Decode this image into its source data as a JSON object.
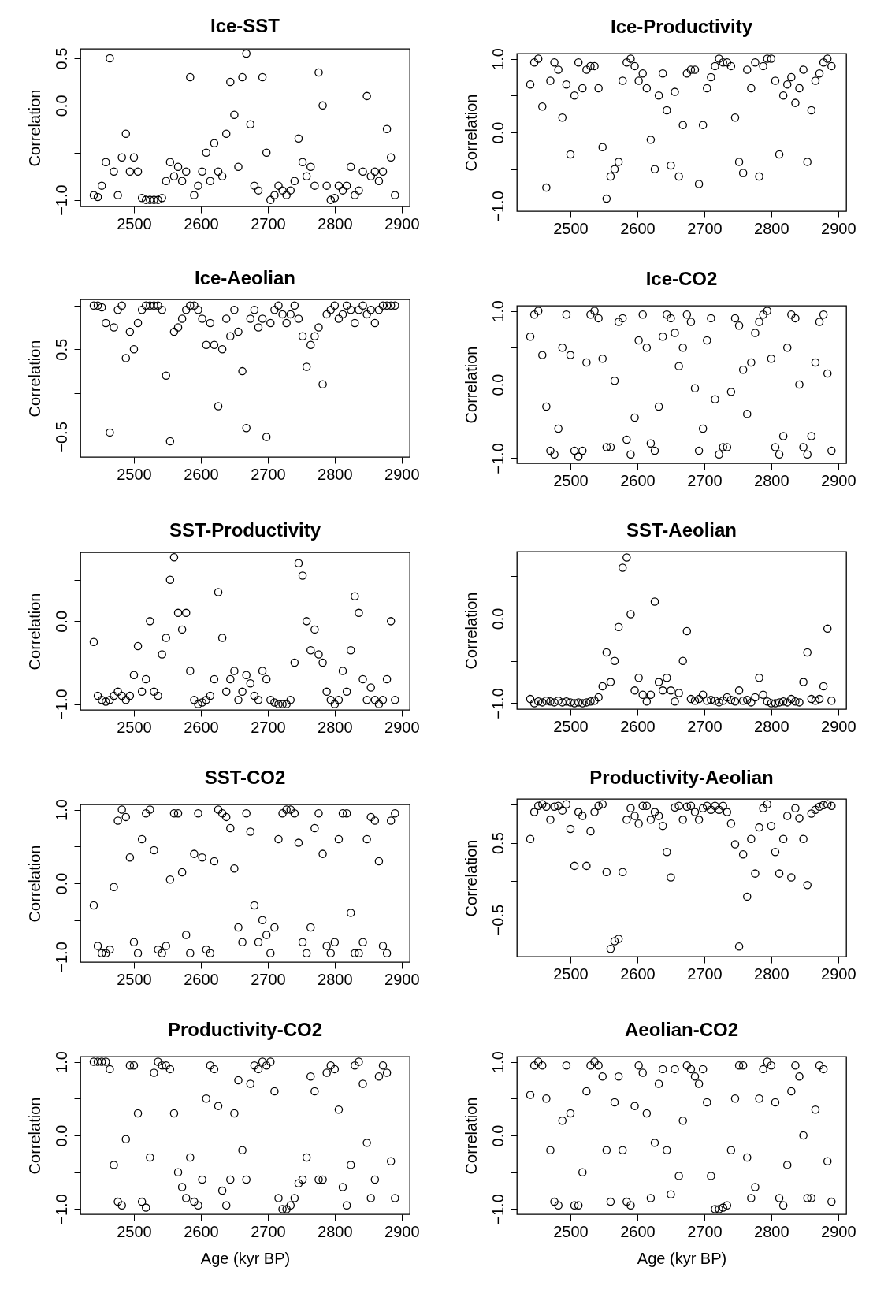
{
  "chart_data": [
    {
      "type": "scatter",
      "title": "Ice-SST",
      "ylabel": "Correlation",
      "marker": "circle",
      "xlim": [
        2420,
        2912
      ],
      "xticks": [
        2500,
        2600,
        2700,
        2800,
        2900
      ],
      "ylim": [
        -1.07,
        0.6
      ],
      "yticks": [
        {
          "value": -1,
          "label": "−1.0"
        },
        {
          "value": -0.5,
          "label": null
        },
        {
          "value": 0,
          "label": "0.0"
        },
        {
          "value": 0.5,
          "label": "0.5"
        }
      ],
      "x": [
        2440,
        2446,
        2452,
        2458,
        2464,
        2470,
        2476,
        2482,
        2488,
        2494,
        2500,
        2506,
        2512,
        2518,
        2524,
        2530,
        2536,
        2542,
        2548,
        2554,
        2560,
        2566,
        2572,
        2578,
        2584,
        2590,
        2596,
        2602,
        2608,
        2614,
        2620,
        2626,
        2632,
        2638,
        2644,
        2650,
        2656,
        2662,
        2668,
        2674,
        2680,
        2686,
        2692,
        2698,
        2704,
        2710,
        2716,
        2722,
        2728,
        2734,
        2740,
        2746,
        2752,
        2758,
        2764,
        2770,
        2776,
        2782,
        2788,
        2794,
        2800,
        2806,
        2812,
        2818,
        2824,
        2830,
        2836,
        2842,
        2848,
        2854,
        2860,
        2866,
        2872,
        2878,
        2884,
        2890
      ],
      "series": [
        {
          "color": "#000000",
          "values": [
            -0.95,
            -0.97,
            -0.85,
            -0.6,
            0.5,
            -0.7,
            -0.95,
            -0.55,
            -0.3,
            -0.7,
            -0.55,
            -0.7,
            -0.98,
            -1.0,
            -1.0,
            -1.0,
            -1.0,
            -0.98,
            -0.8,
            -0.6,
            -0.75,
            -0.65,
            -0.8,
            -0.7,
            0.3,
            -0.95,
            -0.85,
            -0.7,
            -0.5,
            -0.8,
            -0.4,
            -0.7,
            -0.75,
            -0.3,
            0.25,
            -0.1,
            -0.65,
            0.3,
            0.55,
            -0.2,
            -0.85,
            -0.9,
            0.3,
            -0.5,
            -1.0,
            -0.95,
            -0.85,
            -0.9,
            -0.95,
            -0.9,
            -0.8,
            -0.35,
            -0.6,
            -0.75,
            -0.65,
            -0.85,
            0.35,
            0.0,
            -0.85,
            -1.0,
            -0.98,
            -0.85,
            -0.9,
            -0.85,
            -0.65,
            -0.95,
            -0.9,
            -0.7,
            0.1,
            -0.75,
            -0.7,
            -0.8,
            -0.7,
            -0.25,
            -0.55,
            -0.95
          ]
        }
      ]
    },
    {
      "type": "scatter",
      "title": "Ice-Productivity",
      "ylabel": "Correlation",
      "marker": "circle",
      "xlim": [
        2420,
        2912
      ],
      "xticks": [
        2500,
        2600,
        2700,
        2800,
        2900
      ],
      "ylim": [
        -1.07,
        1.07
      ],
      "yticks": [
        {
          "value": -1,
          "label": "−1.0"
        },
        {
          "value": -0.5,
          "label": null
        },
        {
          "value": 0,
          "label": "0.0"
        },
        {
          "value": 0.5,
          "label": null
        },
        {
          "value": 1,
          "label": "1.0"
        }
      ],
      "x": [
        2440,
        2446,
        2452,
        2458,
        2464,
        2470,
        2476,
        2482,
        2488,
        2494,
        2500,
        2506,
        2512,
        2518,
        2524,
        2530,
        2536,
        2542,
        2548,
        2554,
        2560,
        2566,
        2572,
        2578,
        2584,
        2590,
        2596,
        2602,
        2608,
        2614,
        2620,
        2626,
        2632,
        2638,
        2644,
        2650,
        2656,
        2662,
        2668,
        2674,
        2680,
        2686,
        2692,
        2698,
        2704,
        2710,
        2716,
        2722,
        2728,
        2734,
        2740,
        2746,
        2752,
        2758,
        2764,
        2770,
        2776,
        2782,
        2788,
        2794,
        2800,
        2806,
        2812,
        2818,
        2824,
        2830,
        2836,
        2842,
        2848,
        2854,
        2860,
        2866,
        2872,
        2878,
        2884,
        2890
      ],
      "series": [
        {
          "color": "#000000",
          "values": [
            0.65,
            0.95,
            1.0,
            0.35,
            -0.75,
            0.7,
            0.95,
            0.85,
            0.2,
            0.65,
            -0.3,
            0.5,
            0.95,
            0.6,
            0.85,
            0.9,
            0.9,
            0.6,
            -0.2,
            -0.9,
            -0.6,
            -0.5,
            -0.4,
            0.7,
            0.95,
            1.0,
            0.9,
            0.7,
            0.8,
            0.6,
            -0.1,
            -0.5,
            0.5,
            0.8,
            0.3,
            -0.45,
            0.55,
            -0.6,
            0.1,
            0.8,
            0.85,
            0.85,
            -0.7,
            0.1,
            0.6,
            0.75,
            0.9,
            1.0,
            0.95,
            0.95,
            0.9,
            0.2,
            -0.4,
            -0.55,
            0.85,
            0.6,
            0.95,
            -0.6,
            0.9,
            1.0,
            1.0,
            0.7,
            -0.3,
            0.5,
            0.65,
            0.75,
            0.4,
            0.6,
            0.85,
            -0.4,
            0.3,
            0.7,
            0.8,
            0.95,
            1.0,
            0.9
          ]
        }
      ]
    },
    {
      "type": "scatter",
      "title": "Ice-Aeolian",
      "ylabel": "Correlation",
      "marker": "circle",
      "xlim": [
        2420,
        2912
      ],
      "xticks": [
        2500,
        2600,
        2700,
        2800,
        2900
      ],
      "ylim": [
        -0.73,
        1.07
      ],
      "yticks": [
        {
          "value": -0.5,
          "label": "−0.5"
        },
        {
          "value": 0,
          "label": null
        },
        {
          "value": 0.5,
          "label": "0.5"
        },
        {
          "value": 1,
          "label": null
        }
      ],
      "x": [
        2440,
        2446,
        2452,
        2458,
        2464,
        2470,
        2476,
        2482,
        2488,
        2494,
        2500,
        2506,
        2512,
        2518,
        2524,
        2530,
        2536,
        2542,
        2548,
        2554,
        2560,
        2566,
        2572,
        2578,
        2584,
        2590,
        2596,
        2602,
        2608,
        2614,
        2620,
        2626,
        2632,
        2638,
        2644,
        2650,
        2656,
        2662,
        2668,
        2674,
        2680,
        2686,
        2692,
        2698,
        2704,
        2710,
        2716,
        2722,
        2728,
        2734,
        2740,
        2746,
        2752,
        2758,
        2764,
        2770,
        2776,
        2782,
        2788,
        2794,
        2800,
        2806,
        2812,
        2818,
        2824,
        2830,
        2836,
        2842,
        2848,
        2854,
        2860,
        2866,
        2872,
        2878,
        2884,
        2890
      ],
      "series": [
        {
          "color": "#000000",
          "values": [
            1.0,
            1.0,
            0.98,
            0.8,
            -0.45,
            0.75,
            0.95,
            1.0,
            0.4,
            0.7,
            0.5,
            0.8,
            0.95,
            1.0,
            1.0,
            1.0,
            1.0,
            0.95,
            0.2,
            -0.55,
            0.7,
            0.75,
            0.85,
            0.95,
            1.0,
            1.0,
            0.95,
            0.85,
            0.55,
            0.8,
            0.55,
            -0.15,
            0.5,
            0.85,
            0.65,
            0.95,
            0.7,
            0.25,
            -0.4,
            0.85,
            0.95,
            0.75,
            0.85,
            -0.5,
            0.8,
            0.95,
            1.0,
            0.9,
            0.8,
            0.9,
            1.0,
            0.85,
            0.65,
            0.3,
            0.55,
            0.65,
            0.75,
            0.1,
            0.9,
            0.95,
            1.0,
            0.85,
            0.9,
            1.0,
            0.95,
            0.8,
            0.95,
            1.0,
            0.9,
            0.95,
            0.8,
            0.95,
            1.0,
            1.0,
            1.0,
            1.0
          ]
        }
      ]
    },
    {
      "type": "scatter",
      "title": "Ice-CO2",
      "ylabel": "Correlation",
      "marker": "circle",
      "xlim": [
        2420,
        2912
      ],
      "xticks": [
        2500,
        2600,
        2700,
        2800,
        2900
      ],
      "ylim": [
        -1.07,
        1.07
      ],
      "yticks": [
        {
          "value": -1,
          "label": "−1.0"
        },
        {
          "value": -0.5,
          "label": null
        },
        {
          "value": 0,
          "label": "0.0"
        },
        {
          "value": 0.5,
          "label": null
        },
        {
          "value": 1,
          "label": "1.0"
        }
      ],
      "x": [
        2440,
        2446,
        2452,
        2458,
        2464,
        2470,
        2476,
        2482,
        2488,
        2494,
        2500,
        2506,
        2512,
        2518,
        2524,
        2530,
        2536,
        2542,
        2548,
        2554,
        2560,
        2566,
        2572,
        2578,
        2584,
        2590,
        2596,
        2602,
        2608,
        2614,
        2620,
        2626,
        2632,
        2638,
        2644,
        2650,
        2656,
        2662,
        2668,
        2674,
        2680,
        2686,
        2692,
        2698,
        2704,
        2710,
        2716,
        2722,
        2728,
        2734,
        2740,
        2746,
        2752,
        2758,
        2764,
        2770,
        2776,
        2782,
        2788,
        2794,
        2800,
        2806,
        2812,
        2818,
        2824,
        2830,
        2836,
        2842,
        2848,
        2854,
        2860,
        2866,
        2872,
        2878,
        2884,
        2890
      ],
      "series": [
        {
          "color": "#000000",
          "values": [
            0.65,
            0.95,
            1.0,
            0.4,
            -0.3,
            -0.9,
            -0.95,
            -0.6,
            0.5,
            0.95,
            0.4,
            -0.9,
            -0.98,
            -0.9,
            0.3,
            0.95,
            1.0,
            0.9,
            0.35,
            -0.85,
            -0.85,
            0.05,
            0.85,
            0.9,
            -0.75,
            -0.95,
            -0.45,
            0.6,
            0.95,
            0.5,
            -0.8,
            -0.9,
            -0.3,
            0.65,
            0.95,
            0.9,
            0.7,
            0.25,
            0.5,
            0.95,
            0.85,
            -0.05,
            -0.9,
            -0.6,
            0.6,
            0.9,
            -0.2,
            -0.95,
            -0.85,
            -0.85,
            -0.1,
            0.9,
            0.8,
            0.2,
            -0.4,
            0.3,
            0.7,
            0.85,
            0.95,
            1.0,
            0.35,
            -0.85,
            -0.95,
            -0.7,
            0.5,
            0.95,
            0.9,
            0.0,
            -0.85,
            -0.95,
            -0.7,
            0.3,
            0.85,
            0.95,
            0.15,
            -0.9
          ]
        }
      ]
    },
    {
      "type": "scatter",
      "title": "SST-Productivity",
      "ylabel": "Correlation",
      "marker": "circle",
      "xlim": [
        2420,
        2912
      ],
      "xticks": [
        2500,
        2600,
        2700,
        2800,
        2900
      ],
      "ylim": [
        -1.07,
        0.83
      ],
      "yticks": [
        {
          "value": -1,
          "label": "−1.0"
        },
        {
          "value": -0.5,
          "label": null
        },
        {
          "value": 0,
          "label": "0.0"
        },
        {
          "value": 0.5,
          "label": null
        }
      ],
      "x": [
        2440,
        2446,
        2452,
        2458,
        2464,
        2470,
        2476,
        2482,
        2488,
        2494,
        2500,
        2506,
        2512,
        2518,
        2524,
        2530,
        2536,
        2542,
        2548,
        2554,
        2560,
        2566,
        2572,
        2578,
        2584,
        2590,
        2596,
        2602,
        2608,
        2614,
        2620,
        2626,
        2632,
        2638,
        2644,
        2650,
        2656,
        2662,
        2668,
        2674,
        2680,
        2686,
        2692,
        2698,
        2704,
        2710,
        2716,
        2722,
        2728,
        2734,
        2740,
        2746,
        2752,
        2758,
        2764,
        2770,
        2776,
        2782,
        2788,
        2794,
        2800,
        2806,
        2812,
        2818,
        2824,
        2830,
        2836,
        2842,
        2848,
        2854,
        2860,
        2866,
        2872,
        2878,
        2884,
        2890
      ],
      "series": [
        {
          "color": "#000000",
          "values": [
            -0.25,
            -0.9,
            -0.95,
            -0.97,
            -0.95,
            -0.9,
            -0.85,
            -0.9,
            -0.95,
            -0.9,
            -0.65,
            -0.3,
            -0.85,
            -0.7,
            0.0,
            -0.85,
            -0.9,
            -0.4,
            -0.2,
            0.5,
            0.77,
            0.1,
            -0.1,
            0.1,
            -0.6,
            -0.95,
            -1.0,
            -0.98,
            -0.95,
            -0.9,
            -0.7,
            0.35,
            -0.2,
            -0.85,
            -0.7,
            -0.6,
            -0.95,
            -0.85,
            -0.65,
            -0.75,
            -0.9,
            -0.95,
            -0.6,
            -0.7,
            -0.95,
            -0.98,
            -1.0,
            -1.0,
            -1.0,
            -0.95,
            -0.5,
            0.7,
            0.55,
            0.0,
            -0.35,
            -0.1,
            -0.4,
            -0.5,
            -0.85,
            -0.95,
            -1.0,
            -0.95,
            -0.6,
            -0.85,
            -0.35,
            0.3,
            0.1,
            -0.7,
            -0.95,
            -0.8,
            -0.95,
            -1.0,
            -0.95,
            -0.7,
            0.0,
            -0.95
          ]
        }
      ]
    },
    {
      "type": "scatter",
      "title": "SST-Aeolian",
      "ylabel": "Correlation",
      "marker": "circle",
      "xlim": [
        2420,
        2912
      ],
      "xticks": [
        2500,
        2600,
        2700,
        2800,
        2900
      ],
      "ylim": [
        -1.07,
        0.79
      ],
      "yticks": [
        {
          "value": -1,
          "label": "−1.0"
        },
        {
          "value": -0.5,
          "label": null
        },
        {
          "value": 0,
          "label": "0.0"
        },
        {
          "value": 0.5,
          "label": null
        }
      ],
      "x": [
        2440,
        2446,
        2452,
        2458,
        2464,
        2470,
        2476,
        2482,
        2488,
        2494,
        2500,
        2506,
        2512,
        2518,
        2524,
        2530,
        2536,
        2542,
        2548,
        2554,
        2560,
        2566,
        2572,
        2578,
        2584,
        2590,
        2596,
        2602,
        2608,
        2614,
        2620,
        2626,
        2632,
        2638,
        2644,
        2650,
        2656,
        2662,
        2668,
        2674,
        2680,
        2686,
        2692,
        2698,
        2704,
        2710,
        2716,
        2722,
        2728,
        2734,
        2740,
        2746,
        2752,
        2758,
        2764,
        2770,
        2776,
        2782,
        2788,
        2794,
        2800,
        2806,
        2812,
        2818,
        2824,
        2830,
        2836,
        2842,
        2848,
        2854,
        2860,
        2866,
        2872,
        2878,
        2884,
        2890
      ],
      "series": [
        {
          "color": "#000000",
          "values": [
            -0.95,
            -1.0,
            -0.98,
            -0.99,
            -0.97,
            -0.98,
            -0.99,
            -0.97,
            -0.99,
            -0.98,
            -0.99,
            -1.0,
            -0.99,
            -1.0,
            -0.99,
            -0.98,
            -0.97,
            -0.93,
            -0.8,
            -0.4,
            -0.75,
            -0.5,
            -0.1,
            0.6,
            0.72,
            0.05,
            -0.85,
            -0.7,
            -0.9,
            -0.98,
            -0.9,
            0.2,
            -0.75,
            -0.85,
            -0.7,
            -0.85,
            -0.98,
            -0.88,
            -0.5,
            -0.15,
            -0.95,
            -0.97,
            -0.95,
            -0.9,
            -0.97,
            -0.96,
            -0.97,
            -0.99,
            -0.97,
            -0.93,
            -0.96,
            -0.98,
            -0.85,
            -0.97,
            -0.96,
            -0.99,
            -0.93,
            -0.7,
            -0.9,
            -0.98,
            -1.0,
            -1.0,
            -0.99,
            -0.98,
            -0.99,
            -0.95,
            -0.98,
            -0.99,
            -0.75,
            -0.4,
            -0.95,
            -0.97,
            -0.95,
            -0.8,
            -0.12,
            -0.97
          ]
        }
      ]
    },
    {
      "type": "scatter",
      "title": "SST-CO2",
      "ylabel": "Correlation",
      "marker": "circle",
      "xlim": [
        2420,
        2912
      ],
      "xticks": [
        2500,
        2600,
        2700,
        2800,
        2900
      ],
      "ylim": [
        -1.07,
        1.07
      ],
      "yticks": [
        {
          "value": -1,
          "label": "−1.0"
        },
        {
          "value": -0.5,
          "label": null
        },
        {
          "value": 0,
          "label": "0.0"
        },
        {
          "value": 0.5,
          "label": null
        },
        {
          "value": 1,
          "label": "1.0"
        }
      ],
      "x": [
        2440,
        2446,
        2452,
        2458,
        2464,
        2470,
        2476,
        2482,
        2488,
        2494,
        2500,
        2506,
        2512,
        2518,
        2524,
        2530,
        2536,
        2542,
        2548,
        2554,
        2560,
        2566,
        2572,
        2578,
        2584,
        2590,
        2596,
        2602,
        2608,
        2614,
        2620,
        2626,
        2632,
        2638,
        2644,
        2650,
        2656,
        2662,
        2668,
        2674,
        2680,
        2686,
        2692,
        2698,
        2704,
        2710,
        2716,
        2722,
        2728,
        2734,
        2740,
        2746,
        2752,
        2758,
        2764,
        2770,
        2776,
        2782,
        2788,
        2794,
        2800,
        2806,
        2812,
        2818,
        2824,
        2830,
        2836,
        2842,
        2848,
        2854,
        2860,
        2866,
        2872,
        2878,
        2884,
        2890
      ],
      "series": [
        {
          "color": "#000000",
          "values": [
            -0.3,
            -0.85,
            -0.95,
            -0.95,
            -0.9,
            -0.05,
            0.85,
            1.0,
            0.9,
            0.35,
            -0.8,
            -0.95,
            0.6,
            0.95,
            1.0,
            0.45,
            -0.9,
            -0.95,
            -0.85,
            0.05,
            0.95,
            0.95,
            0.15,
            -0.7,
            -0.95,
            0.4,
            0.95,
            0.35,
            -0.9,
            -0.95,
            0.3,
            1.0,
            0.95,
            0.9,
            0.75,
            0.2,
            -0.6,
            -0.8,
            0.95,
            0.7,
            -0.3,
            -0.8,
            -0.5,
            -0.7,
            -0.95,
            -0.6,
            0.6,
            0.95,
            1.0,
            1.0,
            0.95,
            0.55,
            -0.8,
            -0.95,
            -0.6,
            0.75,
            0.95,
            0.4,
            -0.85,
            -0.95,
            -0.8,
            0.6,
            0.95,
            0.95,
            -0.4,
            -0.95,
            -0.95,
            -0.8,
            0.6,
            0.9,
            0.85,
            0.3,
            -0.85,
            -0.95,
            0.85,
            0.95
          ]
        }
      ]
    },
    {
      "type": "scatter",
      "title": "Productivity-Aeolian",
      "ylabel": "Correlation",
      "marker": "circle",
      "xlim": [
        2420,
        2912
      ],
      "xticks": [
        2500,
        2600,
        2700,
        2800,
        2900
      ],
      "ylim": [
        -0.98,
        1.07
      ],
      "yticks": [
        {
          "value": -0.5,
          "label": "−0.5"
        },
        {
          "value": 0,
          "label": null
        },
        {
          "value": 0.5,
          "label": "0.5"
        },
        {
          "value": 1,
          "label": null
        }
      ],
      "x": [
        2440,
        2446,
        2452,
        2458,
        2464,
        2470,
        2476,
        2482,
        2488,
        2494,
        2500,
        2506,
        2512,
        2518,
        2524,
        2530,
        2536,
        2542,
        2548,
        2554,
        2560,
        2566,
        2572,
        2578,
        2584,
        2590,
        2596,
        2602,
        2608,
        2614,
        2620,
        2626,
        2632,
        2638,
        2644,
        2650,
        2656,
        2662,
        2668,
        2674,
        2680,
        2686,
        2692,
        2698,
        2704,
        2710,
        2716,
        2722,
        2728,
        2734,
        2740,
        2746,
        2752,
        2758,
        2764,
        2770,
        2776,
        2782,
        2788,
        2794,
        2800,
        2806,
        2812,
        2818,
        2824,
        2830,
        2836,
        2842,
        2848,
        2854,
        2860,
        2866,
        2872,
        2878,
        2884,
        2890
      ],
      "series": [
        {
          "color": "#000000",
          "values": [
            0.55,
            0.9,
            0.98,
            1.0,
            0.97,
            0.8,
            0.97,
            0.98,
            0.92,
            1.0,
            0.68,
            0.2,
            0.9,
            0.85,
            0.2,
            0.65,
            0.9,
            0.98,
            1.0,
            0.12,
            -0.88,
            -0.78,
            -0.75,
            0.12,
            0.8,
            0.95,
            0.85,
            0.75,
            0.98,
            0.98,
            0.8,
            0.9,
            0.85,
            0.72,
            0.38,
            0.05,
            0.96,
            0.98,
            0.8,
            0.97,
            0.98,
            0.9,
            0.8,
            0.95,
            0.98,
            0.93,
            0.98,
            0.93,
            0.98,
            0.9,
            0.75,
            0.48,
            -0.85,
            0.35,
            -0.2,
            0.55,
            0.1,
            0.7,
            0.95,
            1.0,
            0.72,
            0.38,
            0.1,
            0.55,
            0.85,
            0.05,
            0.95,
            0.82,
            0.55,
            -0.05,
            0.88,
            0.93,
            0.97,
            0.99,
            1.0,
            0.98
          ]
        }
      ]
    },
    {
      "type": "scatter",
      "title": "Productivity-CO2",
      "xlabel": "Age (kyr BP)",
      "ylabel": "Correlation",
      "marker": "circle",
      "xlim": [
        2420,
        2912
      ],
      "xticks": [
        2500,
        2600,
        2700,
        2800,
        2900
      ],
      "ylim": [
        -1.07,
        1.07
      ],
      "yticks": [
        {
          "value": -1,
          "label": "−1.0"
        },
        {
          "value": -0.5,
          "label": null
        },
        {
          "value": 0,
          "label": "0.0"
        },
        {
          "value": 0.5,
          "label": null
        },
        {
          "value": 1,
          "label": "1.0"
        }
      ],
      "x": [
        2440,
        2446,
        2452,
        2458,
        2464,
        2470,
        2476,
        2482,
        2488,
        2494,
        2500,
        2506,
        2512,
        2518,
        2524,
        2530,
        2536,
        2542,
        2548,
        2554,
        2560,
        2566,
        2572,
        2578,
        2584,
        2590,
        2596,
        2602,
        2608,
        2614,
        2620,
        2626,
        2632,
        2638,
        2644,
        2650,
        2656,
        2662,
        2668,
        2674,
        2680,
        2686,
        2692,
        2698,
        2704,
        2710,
        2716,
        2722,
        2728,
        2734,
        2740,
        2746,
        2752,
        2758,
        2764,
        2770,
        2776,
        2782,
        2788,
        2794,
        2800,
        2806,
        2812,
        2818,
        2824,
        2830,
        2836,
        2842,
        2848,
        2854,
        2860,
        2866,
        2872,
        2878,
        2884,
        2890
      ],
      "series": [
        {
          "color": "#000000",
          "values": [
            1.0,
            1.0,
            1.0,
            1.0,
            0.9,
            -0.4,
            -0.9,
            -0.95,
            -0.05,
            0.95,
            0.95,
            0.3,
            -0.9,
            -0.98,
            -0.3,
            0.85,
            1.0,
            0.95,
            0.95,
            0.9,
            0.3,
            -0.5,
            -0.7,
            -0.85,
            -0.3,
            -0.9,
            -0.95,
            -0.6,
            0.5,
            0.95,
            0.9,
            0.4,
            -0.75,
            -0.95,
            -0.6,
            0.3,
            0.75,
            -0.2,
            -0.6,
            0.7,
            0.95,
            0.9,
            1.0,
            0.95,
            1.0,
            0.6,
            -0.85,
            -1.0,
            -1.0,
            -0.95,
            -0.85,
            -0.65,
            -0.6,
            -0.3,
            0.8,
            0.6,
            -0.6,
            -0.6,
            0.85,
            0.95,
            0.9,
            0.35,
            -0.7,
            -0.95,
            -0.4,
            0.95,
            1.0,
            0.7,
            -0.1,
            -0.85,
            -0.6,
            0.8,
            0.95,
            0.85,
            -0.35,
            -0.85
          ]
        }
      ]
    },
    {
      "type": "scatter",
      "title": "Aeolian-CO2",
      "xlabel": "Age (kyr BP)",
      "ylabel": "Correlation",
      "marker": "circle",
      "xlim": [
        2420,
        2912
      ],
      "xticks": [
        2500,
        2600,
        2700,
        2800,
        2900
      ],
      "ylim": [
        -1.07,
        1.07
      ],
      "yticks": [
        {
          "value": -1,
          "label": "−1.0"
        },
        {
          "value": -0.5,
          "label": null
        },
        {
          "value": 0,
          "label": "0.0"
        },
        {
          "value": 0.5,
          "label": null
        },
        {
          "value": 1,
          "label": "1.0"
        }
      ],
      "x": [
        2440,
        2446,
        2452,
        2458,
        2464,
        2470,
        2476,
        2482,
        2488,
        2494,
        2500,
        2506,
        2512,
        2518,
        2524,
        2530,
        2536,
        2542,
        2548,
        2554,
        2560,
        2566,
        2572,
        2578,
        2584,
        2590,
        2596,
        2602,
        2608,
        2614,
        2620,
        2626,
        2632,
        2638,
        2644,
        2650,
        2656,
        2662,
        2668,
        2674,
        2680,
        2686,
        2692,
        2698,
        2704,
        2710,
        2716,
        2722,
        2728,
        2734,
        2740,
        2746,
        2752,
        2758,
        2764,
        2770,
        2776,
        2782,
        2788,
        2794,
        2800,
        2806,
        2812,
        2818,
        2824,
        2830,
        2836,
        2842,
        2848,
        2854,
        2860,
        2866,
        2872,
        2878,
        2884,
        2890
      ],
      "series": [
        {
          "color": "#000000",
          "values": [
            0.55,
            0.95,
            1.0,
            0.95,
            0.5,
            -0.2,
            -0.9,
            -0.95,
            0.2,
            0.95,
            0.3,
            -0.95,
            -0.95,
            -0.5,
            0.6,
            0.95,
            1.0,
            0.95,
            0.8,
            -0.2,
            -0.9,
            0.45,
            0.8,
            -0.2,
            -0.9,
            -0.95,
            0.4,
            0.95,
            0.85,
            0.3,
            -0.85,
            -0.1,
            0.7,
            0.9,
            -0.2,
            -0.8,
            0.9,
            -0.55,
            0.2,
            0.95,
            0.9,
            0.8,
            0.7,
            0.9,
            0.45,
            -0.55,
            -1.0,
            -1.0,
            -0.98,
            -0.95,
            -0.2,
            0.5,
            0.95,
            0.95,
            -0.3,
            -0.85,
            -0.7,
            0.5,
            0.9,
            1.0,
            0.95,
            0.45,
            -0.85,
            -0.95,
            -0.4,
            0.6,
            0.95,
            0.8,
            0.0,
            -0.85,
            -0.85,
            0.35,
            0.95,
            0.9,
            -0.35,
            -0.9
          ]
        }
      ]
    }
  ]
}
